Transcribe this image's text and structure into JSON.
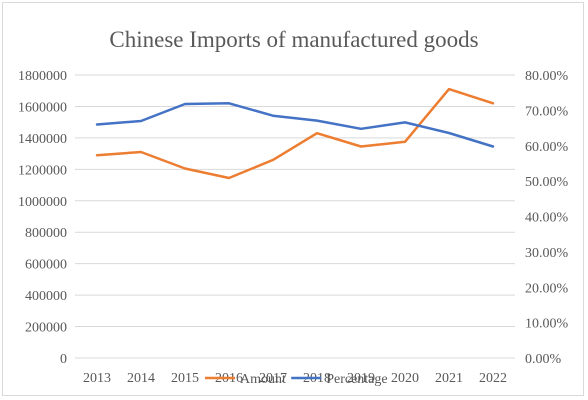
{
  "chart_data": {
    "type": "line",
    "title": "Chinese Imports of manufactured goods",
    "categories": [
      "2013",
      "2014",
      "2015",
      "2016",
      "2017",
      "2018",
      "2019",
      "2020",
      "2021",
      "2022"
    ],
    "y_left": {
      "ylim": [
        0,
        1800000
      ],
      "ticks": [
        "0",
        "200000",
        "400000",
        "600000",
        "800000",
        "1000000",
        "1200000",
        "1400000",
        "1600000",
        "1800000"
      ]
    },
    "y_right": {
      "ylim": [
        0,
        0.8
      ],
      "ticks": [
        "0.00%",
        "10.00%",
        "20.00%",
        "30.00%",
        "40.00%",
        "50.00%",
        "60.00%",
        "70.00%",
        "80.00%"
      ]
    },
    "series": [
      {
        "name": "Amount",
        "axis": "left",
        "color": "#ED7D31",
        "values": [
          1290000,
          1310000,
          1205000,
          1145000,
          1260000,
          1430000,
          1345000,
          1375000,
          1710000,
          1620000
        ]
      },
      {
        "name": "Percentage",
        "axis": "right",
        "color": "#4472C4",
        "values": [
          0.66,
          0.67,
          0.718,
          0.72,
          0.685,
          0.671,
          0.648,
          0.666,
          0.636,
          0.598
        ]
      }
    ],
    "grid": true,
    "legend_position": "bottom"
  }
}
